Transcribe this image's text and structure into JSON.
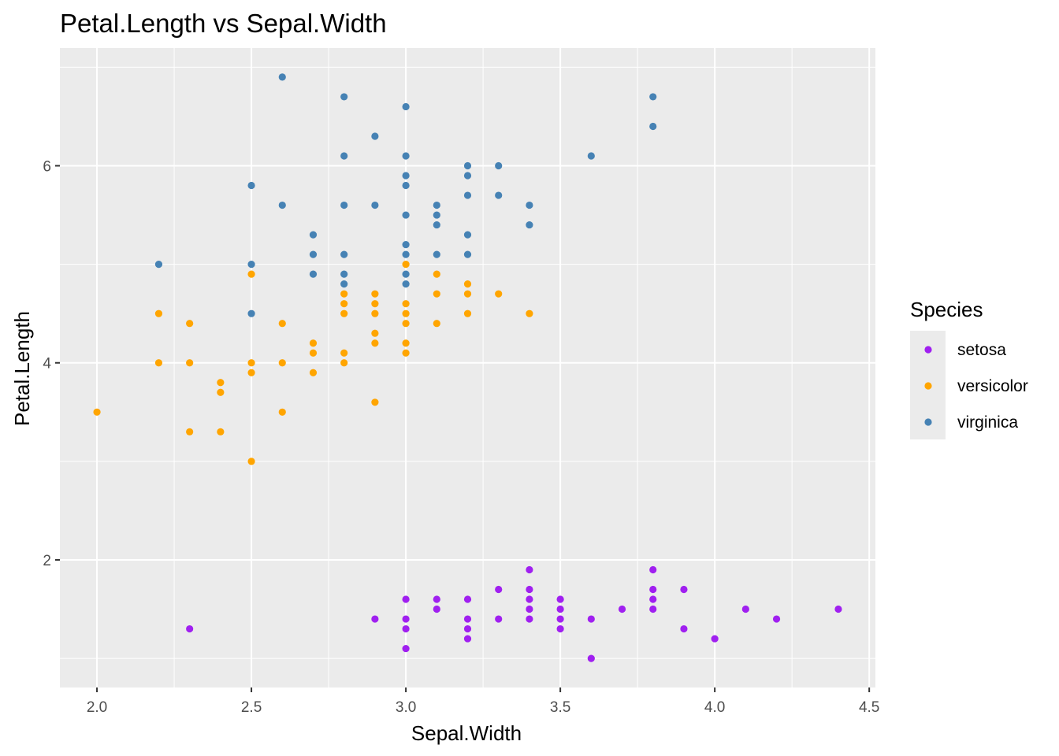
{
  "chart_data": {
    "type": "scatter",
    "title": "Petal.Length vs Sepal.Width",
    "xlabel": "Sepal.Width",
    "ylabel": "Petal.Length",
    "xlim": [
      1.88,
      4.52
    ],
    "ylim": [
      0.705,
      7.195
    ],
    "x_ticks": [
      2.0,
      2.5,
      3.0,
      3.5,
      4.0,
      4.5
    ],
    "x_tick_labels": [
      "2.0",
      "2.5",
      "3.0",
      "3.5",
      "4.0",
      "4.5"
    ],
    "y_ticks": [
      2,
      4,
      6
    ],
    "y_tick_labels": [
      "2",
      "4",
      "6"
    ],
    "grid": true,
    "legend": {
      "title": "Species",
      "placement": "right"
    },
    "series": [
      {
        "name": "setosa",
        "color": "#a020f0",
        "points": [
          [
            2.3,
            1.3
          ],
          [
            2.9,
            1.4
          ],
          [
            3.0,
            1.6
          ],
          [
            3.0,
            1.4
          ],
          [
            3.0,
            1.3
          ],
          [
            3.0,
            1.1
          ],
          [
            3.1,
            1.6
          ],
          [
            3.1,
            1.5
          ],
          [
            3.2,
            1.6
          ],
          [
            3.2,
            1.4
          ],
          [
            3.2,
            1.3
          ],
          [
            3.2,
            1.2
          ],
          [
            3.3,
            1.7
          ],
          [
            3.3,
            1.4
          ],
          [
            3.4,
            1.9
          ],
          [
            3.4,
            1.7
          ],
          [
            3.4,
            1.6
          ],
          [
            3.4,
            1.5
          ],
          [
            3.4,
            1.4
          ],
          [
            3.5,
            1.6
          ],
          [
            3.5,
            1.5
          ],
          [
            3.5,
            1.4
          ],
          [
            3.5,
            1.3
          ],
          [
            3.6,
            1.4
          ],
          [
            3.6,
            1.0
          ],
          [
            3.7,
            1.5
          ],
          [
            3.8,
            1.9
          ],
          [
            3.8,
            1.7
          ],
          [
            3.8,
            1.6
          ],
          [
            3.8,
            1.5
          ],
          [
            3.9,
            1.7
          ],
          [
            3.9,
            1.3
          ],
          [
            4.0,
            1.2
          ],
          [
            4.1,
            1.5
          ],
          [
            4.2,
            1.4
          ],
          [
            4.4,
            1.5
          ]
        ]
      },
      {
        "name": "versicolor",
        "color": "#ffa500",
        "points": [
          [
            2.0,
            3.5
          ],
          [
            2.2,
            4.5
          ],
          [
            2.2,
            4.0
          ],
          [
            2.3,
            4.4
          ],
          [
            2.3,
            4.0
          ],
          [
            2.3,
            3.3
          ],
          [
            2.4,
            3.8
          ],
          [
            2.4,
            3.7
          ],
          [
            2.4,
            3.3
          ],
          [
            2.5,
            4.9
          ],
          [
            2.5,
            4.0
          ],
          [
            2.5,
            3.9
          ],
          [
            2.5,
            3.0
          ],
          [
            2.6,
            4.4
          ],
          [
            2.6,
            4.0
          ],
          [
            2.6,
            3.5
          ],
          [
            2.7,
            4.2
          ],
          [
            2.7,
            4.1
          ],
          [
            2.7,
            3.9
          ],
          [
            2.8,
            4.7
          ],
          [
            2.8,
            4.6
          ],
          [
            2.8,
            4.5
          ],
          [
            2.8,
            4.1
          ],
          [
            2.8,
            4.0
          ],
          [
            2.9,
            4.7
          ],
          [
            2.9,
            4.6
          ],
          [
            2.9,
            4.5
          ],
          [
            2.9,
            4.3
          ],
          [
            2.9,
            4.2
          ],
          [
            2.9,
            3.6
          ],
          [
            3.0,
            5.0
          ],
          [
            3.0,
            4.6
          ],
          [
            3.0,
            4.5
          ],
          [
            3.0,
            4.4
          ],
          [
            3.0,
            4.2
          ],
          [
            3.0,
            4.1
          ],
          [
            3.1,
            4.9
          ],
          [
            3.1,
            4.7
          ],
          [
            3.1,
            4.4
          ],
          [
            3.2,
            4.8
          ],
          [
            3.2,
            4.7
          ],
          [
            3.2,
            4.5
          ],
          [
            3.3,
            4.7
          ],
          [
            3.4,
            4.5
          ]
        ]
      },
      {
        "name": "virginica",
        "color": "#4682b4",
        "points": [
          [
            2.2,
            5.0
          ],
          [
            2.5,
            5.8
          ],
          [
            2.5,
            5.0
          ],
          [
            2.5,
            4.5
          ],
          [
            2.6,
            6.9
          ],
          [
            2.6,
            5.6
          ],
          [
            2.7,
            5.3
          ],
          [
            2.7,
            5.1
          ],
          [
            2.7,
            4.9
          ],
          [
            2.8,
            6.7
          ],
          [
            2.8,
            6.1
          ],
          [
            2.8,
            5.6
          ],
          [
            2.8,
            5.1
          ],
          [
            2.8,
            4.9
          ],
          [
            2.8,
            4.8
          ],
          [
            2.9,
            6.3
          ],
          [
            2.9,
            5.6
          ],
          [
            3.0,
            6.6
          ],
          [
            3.0,
            6.1
          ],
          [
            3.0,
            5.9
          ],
          [
            3.0,
            5.8
          ],
          [
            3.0,
            5.5
          ],
          [
            3.0,
            5.2
          ],
          [
            3.0,
            5.1
          ],
          [
            3.0,
            4.9
          ],
          [
            3.0,
            4.8
          ],
          [
            3.1,
            5.6
          ],
          [
            3.1,
            5.5
          ],
          [
            3.1,
            5.4
          ],
          [
            3.1,
            5.1
          ],
          [
            3.2,
            6.0
          ],
          [
            3.2,
            5.9
          ],
          [
            3.2,
            5.7
          ],
          [
            3.2,
            5.3
          ],
          [
            3.2,
            5.1
          ],
          [
            3.3,
            6.0
          ],
          [
            3.3,
            5.7
          ],
          [
            3.4,
            5.6
          ],
          [
            3.4,
            5.4
          ],
          [
            3.6,
            6.1
          ],
          [
            3.8,
            6.7
          ],
          [
            3.8,
            6.4
          ]
        ]
      }
    ]
  },
  "colors": {
    "panel_background": "#ebebeb",
    "grid_major": "#ffffff",
    "tick_text": "#4d4d4d",
    "tick_mark": "#333333"
  }
}
